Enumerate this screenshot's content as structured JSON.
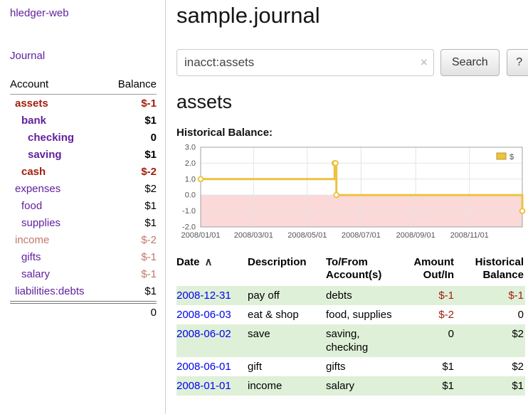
{
  "sidebar": {
    "brand": "hledger-web",
    "journal_label": "Journal",
    "accounts_header": {
      "account": "Account",
      "balance": "Balance"
    },
    "accounts": [
      {
        "name": "assets",
        "balance": "$-1",
        "indent": 0,
        "bold": true,
        "name_style": "darkred",
        "balance_style": "darkred"
      },
      {
        "name": "bank",
        "balance": "$1",
        "indent": 1,
        "bold": true,
        "name_style": "purple",
        "balance_style": "black"
      },
      {
        "name": "checking",
        "balance": "0",
        "indent": 2,
        "bold": true,
        "name_style": "purple",
        "balance_style": "black"
      },
      {
        "name": "saving",
        "balance": "$1",
        "indent": 2,
        "bold": true,
        "name_style": "purple",
        "balance_style": "black"
      },
      {
        "name": "cash",
        "balance": "$-2",
        "indent": 1,
        "bold": true,
        "name_style": "darkred",
        "balance_style": "darkred"
      },
      {
        "name": "expenses",
        "balance": "$2",
        "indent": 0,
        "bold": false,
        "name_style": "purple",
        "balance_style": "black"
      },
      {
        "name": "food",
        "balance": "$1",
        "indent": 1,
        "bold": false,
        "name_style": "purple",
        "balance_style": "black"
      },
      {
        "name": "supplies",
        "balance": "$1",
        "indent": 1,
        "bold": false,
        "name_style": "purple",
        "balance_style": "black"
      },
      {
        "name": "income",
        "balance": "$-2",
        "indent": 0,
        "bold": false,
        "name_style": "lightred",
        "balance_style": "lightred"
      },
      {
        "name": "gifts",
        "balance": "$-1",
        "indent": 1,
        "bold": false,
        "name_style": "purple",
        "balance_style": "lightred"
      },
      {
        "name": "salary",
        "balance": "$-1",
        "indent": 1,
        "bold": false,
        "name_style": "purple",
        "balance_style": "lightred"
      },
      {
        "name": "liabilities:debts",
        "balance": "$1",
        "indent": 0,
        "bold": false,
        "name_style": "purple",
        "balance_style": "black"
      }
    ],
    "total": "0"
  },
  "main": {
    "title": "sample.journal",
    "search": {
      "value": "inacct:assets",
      "clear_icon": "×",
      "button_label": "Search",
      "help_label": "?"
    },
    "account_heading": "assets",
    "chart_label": "Historical Balance:"
  },
  "chart_data": {
    "type": "line",
    "step": true,
    "title": "Historical Balance",
    "x": [
      "2008-01-01",
      "2008-06-01",
      "2008-06-02",
      "2008-06-03",
      "2008-12-31"
    ],
    "series": [
      {
        "name": "$",
        "color": "#edc240",
        "values": [
          1,
          2,
          2,
          0,
          -1
        ]
      }
    ],
    "x_tick_labels": [
      "2008/01/01",
      "2008/03/01",
      "2008/05/01",
      "2008/07/01",
      "2008/09/01",
      "2008/11/01"
    ],
    "y_ticks": [
      3,
      2,
      1,
      0,
      -1,
      -2
    ],
    "ylim": [
      -2,
      3
    ],
    "xlim": [
      "2008-01-01",
      "2008-12-31"
    ],
    "grid": true,
    "legend_position": "top-right",
    "negative_region_color": "#fbd9d9",
    "grid_color": "#e4e4e4",
    "plot_border_color": "#a0a0a0"
  },
  "register": {
    "columns": [
      "Date",
      "Description",
      "To/From Account(s)",
      "Amount Out/In",
      "Historical Balance"
    ],
    "sort_icon": "∧",
    "rows": [
      {
        "date": "2008-12-31",
        "description": "pay off",
        "accounts": "debts",
        "amount": "$-1",
        "balance": "$-1"
      },
      {
        "date": "2008-06-03",
        "description": "eat & shop",
        "accounts": "food, supplies",
        "amount": "$-2",
        "balance": "0"
      },
      {
        "date": "2008-06-02",
        "description": "save",
        "accounts": "saving, checking",
        "amount": "0",
        "balance": "$2"
      },
      {
        "date": "2008-06-01",
        "description": "gift",
        "accounts": "gifts",
        "amount": "$1",
        "balance": "$2"
      },
      {
        "date": "2008-01-01",
        "description": "income",
        "accounts": "salary",
        "amount": "$1",
        "balance": "$1"
      }
    ]
  },
  "theme": {
    "link_purple": "#61219E",
    "link_blue": "#0000EE",
    "negative_dark_red": "#A0200F",
    "negative_light_red": "#C4766B",
    "row_alt_green": "#dff0d8",
    "series_gold": "#edc240",
    "negative_region_pink": "#fbd9d9"
  }
}
